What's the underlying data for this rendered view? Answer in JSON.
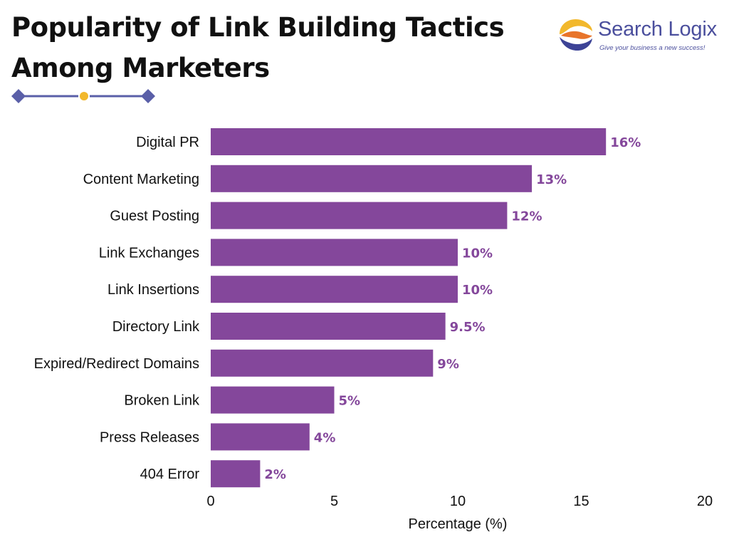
{
  "header": {
    "title_line1": "Popularity of Link Building Tactics",
    "title_line2": "Among Marketers"
  },
  "logo": {
    "brand": "Search Logix",
    "tagline": "Give your business a new success!"
  },
  "colors": {
    "bar": "#84479b",
    "value_label": "#84479b",
    "divider": "#5a5fa8",
    "divider_dot": "#f2b82c",
    "logo_text": "#4b4f9d"
  },
  "chart_data": {
    "type": "bar",
    "orientation": "horizontal",
    "title": "Popularity of Link Building Tactics Among Marketers",
    "xlabel": "Percentage (%)",
    "ylabel": "",
    "xlim": [
      0,
      20
    ],
    "xticks": [
      0,
      5,
      10,
      15,
      20
    ],
    "grid": false,
    "categories": [
      "Digital PR",
      "Content Marketing",
      "Guest Posting",
      "Link Exchanges",
      "Link Insertions",
      "Directory Link",
      "Expired/Redirect Domains",
      "Broken Link",
      "Press Releases",
      "404 Error"
    ],
    "values": [
      16,
      13,
      12,
      10,
      10,
      9.5,
      9,
      5,
      4,
      2
    ],
    "value_labels": [
      "16%",
      "13%",
      "12%",
      "10%",
      "10%",
      "9.5%",
      "9%",
      "5%",
      "4%",
      "2%"
    ]
  }
}
